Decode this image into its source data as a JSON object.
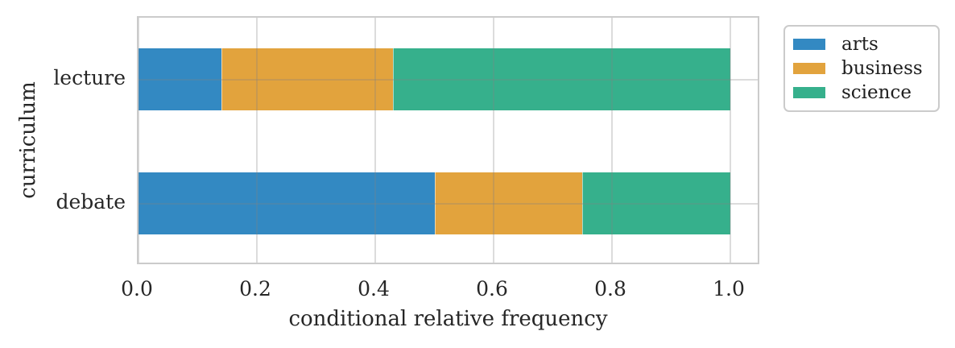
{
  "chart_data": {
    "type": "bar",
    "orientation": "horizontal",
    "stacked": true,
    "normalized": true,
    "title": "",
    "xlabel": "conditional relative frequency",
    "ylabel": "curriculum",
    "categories": [
      "lecture",
      "debate"
    ],
    "series": [
      {
        "name": "arts",
        "color": "#3389c2",
        "values": [
          0.14,
          0.5
        ]
      },
      {
        "name": "business",
        "color": "#e2a33d",
        "values": [
          0.29,
          0.25
        ]
      },
      {
        "name": "science",
        "color": "#36b08c",
        "values": [
          0.57,
          0.25
        ]
      }
    ],
    "x_tick_labels": [
      "0.0",
      "0.2",
      "0.4",
      "0.6",
      "0.8",
      "1.0"
    ],
    "x_tick_values": [
      0.0,
      0.2,
      0.4,
      0.6,
      0.8,
      1.0
    ],
    "xlim": [
      0.0,
      1.05
    ],
    "grid": true,
    "legend": {
      "position": "outside-upper-right",
      "entries": [
        "arts",
        "business",
        "science"
      ]
    }
  },
  "colors": {
    "background": "#ffffff",
    "frame": "#cbcbcb",
    "gridline": "#d9d9d9",
    "text": "#262626",
    "arts": "#3389c2",
    "business": "#e2a33d",
    "science": "#36b08c"
  }
}
